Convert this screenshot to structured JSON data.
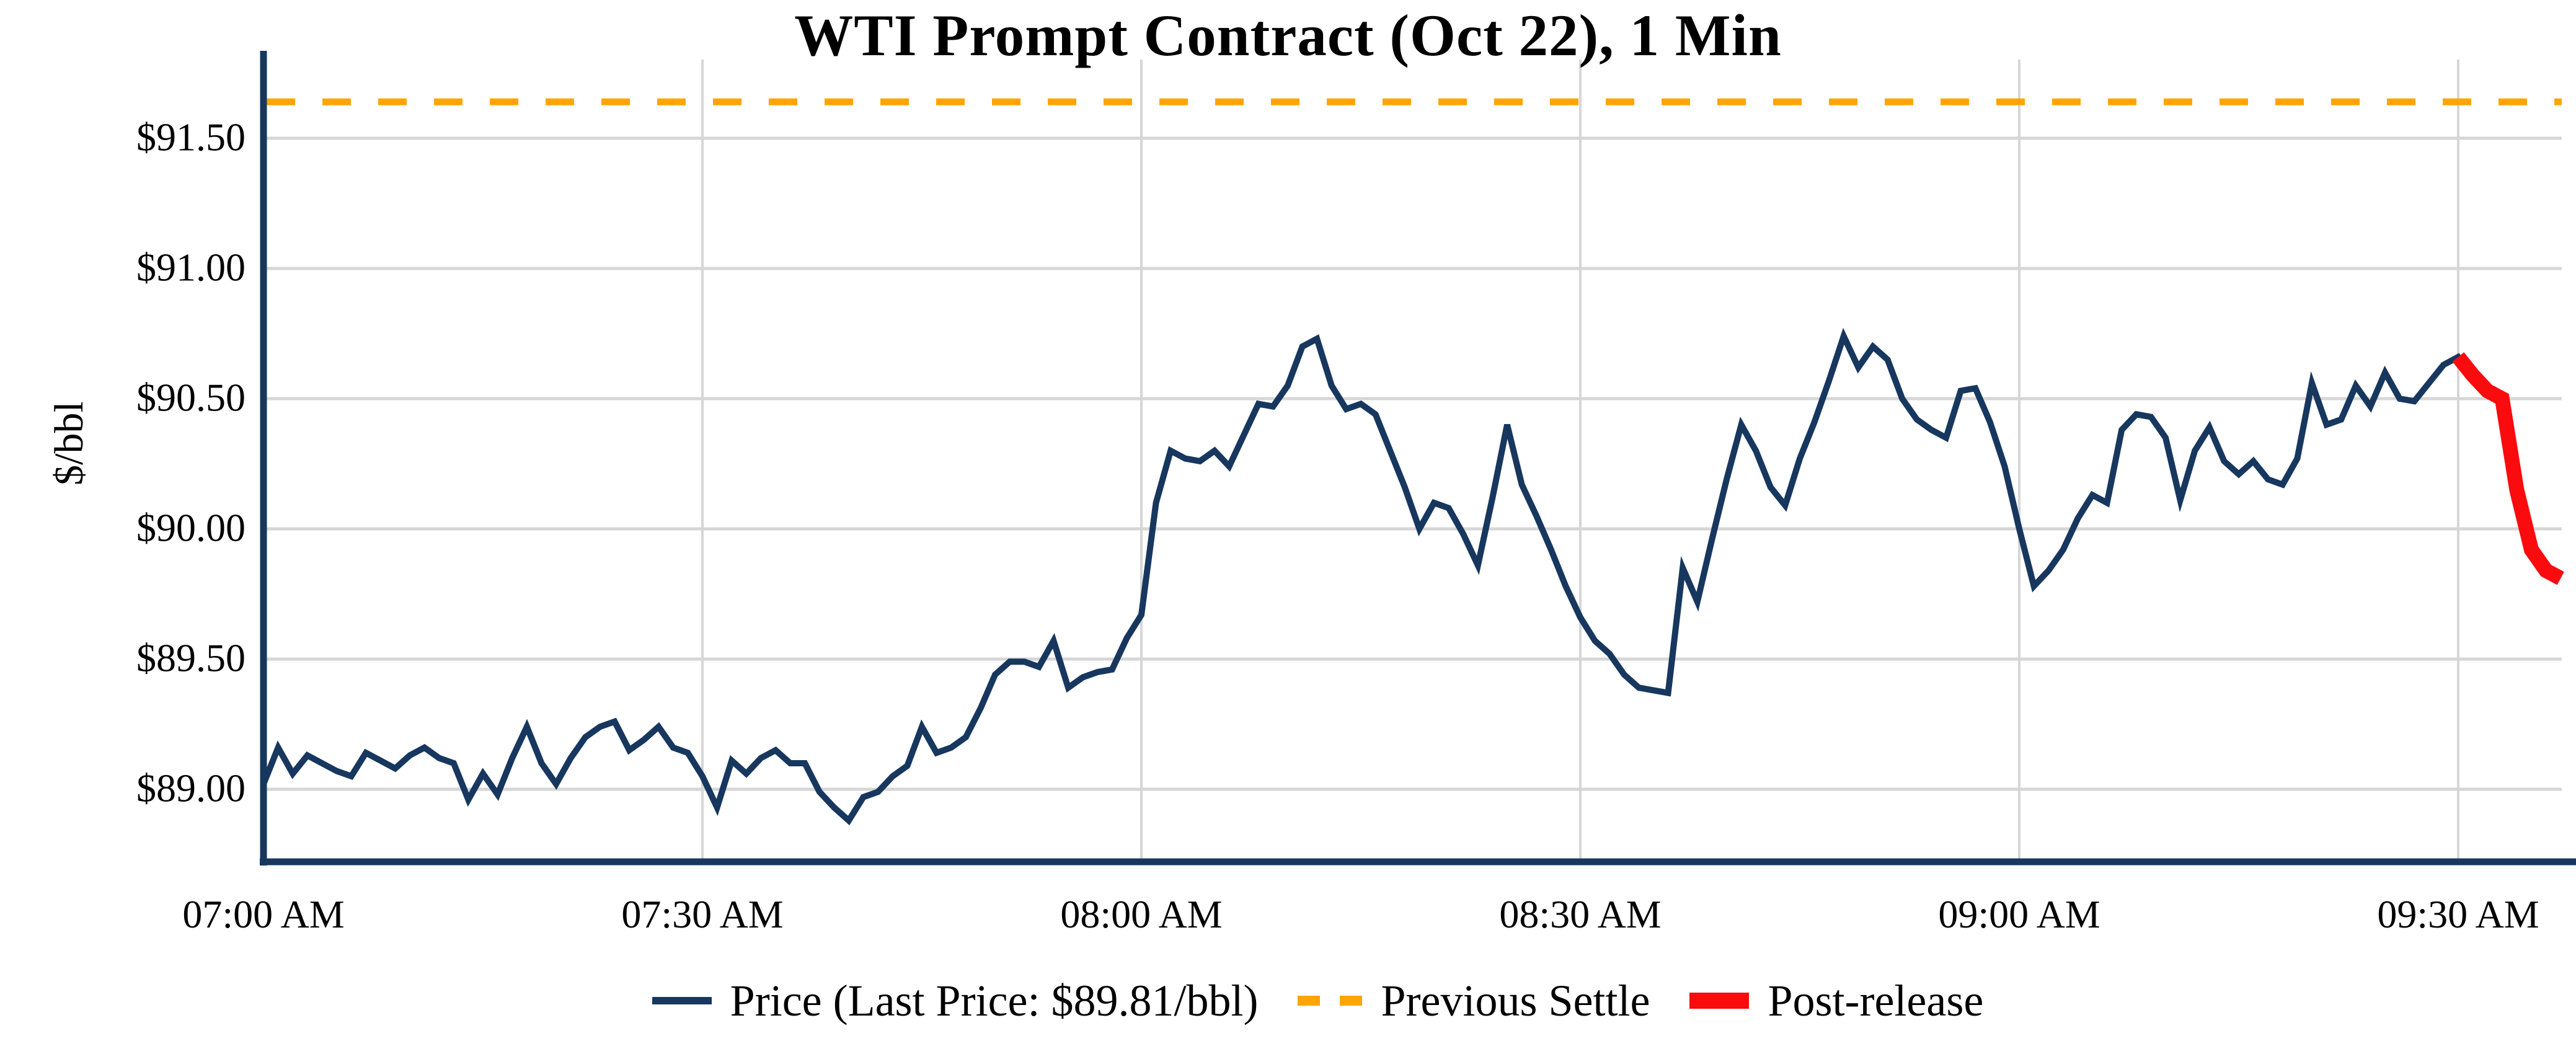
{
  "title": "WTI Prompt Contract (Oct 22), 1 Min",
  "y_axis_label": "$/bbl",
  "legend": {
    "price_label": "Price (Last Price: $89.81/bbl)",
    "settle_label": "Previous Settle",
    "post_label": "Post-release"
  },
  "colors": {
    "price": "#17375E",
    "settle": "#FFA405",
    "post": "#F90B0E",
    "grid": "#D6D6D6",
    "axis": "#17375E",
    "text": "#000000",
    "background": "#FFFFFF"
  },
  "chart_data": {
    "type": "line",
    "title": "WTI Prompt Contract (Oct 22), 1 Min",
    "xlabel": "",
    "ylabel": "$/bbl",
    "x_start": "07:00 AM",
    "x_interval_minutes": 1,
    "x_tick_labels": [
      "07:00 AM",
      "07:30 AM",
      "08:00 AM",
      "08:30 AM",
      "09:00 AM",
      "09:30 AM"
    ],
    "x_tick_minutes": [
      0,
      30,
      60,
      90,
      120,
      150
    ],
    "y_tick_labels": [
      "$91.50",
      "$91.00",
      "$90.50",
      "$90.00",
      "$89.50",
      "$89.00"
    ],
    "y_tick_values": [
      91.5,
      91.0,
      90.5,
      90.0,
      89.5,
      89.0
    ],
    "ylim": [
      88.72,
      91.8
    ],
    "grid": true,
    "legend_position": "bottom-center",
    "previous_settle": 91.64,
    "last_price": 89.81,
    "post_release_start_index": 150,
    "series": [
      {
        "name": "Price (Last Price: $89.81/bbl)",
        "values": [
          89.02,
          89.16,
          89.06,
          89.13,
          89.1,
          89.07,
          89.05,
          89.14,
          89.11,
          89.08,
          89.13,
          89.16,
          89.12,
          89.1,
          88.96,
          89.06,
          88.98,
          89.12,
          89.24,
          89.1,
          89.02,
          89.12,
          89.2,
          89.24,
          89.26,
          89.15,
          89.19,
          89.24,
          89.16,
          89.14,
          89.05,
          88.93,
          89.11,
          89.06,
          89.12,
          89.15,
          89.1,
          89.1,
          88.99,
          88.93,
          88.88,
          88.97,
          88.99,
          89.05,
          89.09,
          89.24,
          89.14,
          89.16,
          89.2,
          89.31,
          89.44,
          89.49,
          89.49,
          89.47,
          89.57,
          89.39,
          89.43,
          89.45,
          89.46,
          89.58,
          89.67,
          90.1,
          90.3,
          90.27,
          90.26,
          90.3,
          90.24,
          90.36,
          90.48,
          90.47,
          90.55,
          90.7,
          90.73,
          90.55,
          90.46,
          90.48,
          90.44,
          90.3,
          90.16,
          90.0,
          90.1,
          90.08,
          89.98,
          89.86,
          90.12,
          90.4,
          90.17,
          90.05,
          89.92,
          89.78,
          89.66,
          89.57,
          89.52,
          89.44,
          89.39,
          89.38,
          89.37,
          89.85,
          89.72,
          89.96,
          90.19,
          90.4,
          90.3,
          90.16,
          90.09,
          90.27,
          90.41,
          90.57,
          90.74,
          90.62,
          90.7,
          90.65,
          90.5,
          90.42,
          90.38,
          90.35,
          90.53,
          90.54,
          90.41,
          90.24,
          90.0,
          89.78,
          89.84,
          89.92,
          90.04,
          90.13,
          90.1,
          90.38,
          90.44,
          90.43,
          90.35,
          90.11,
          90.3,
          90.39,
          90.26,
          90.21,
          90.26,
          90.19,
          90.17,
          90.27,
          90.56,
          90.4,
          90.42,
          90.55,
          90.47,
          90.6,
          90.5,
          90.49,
          90.56,
          90.63,
          90.66,
          90.59,
          90.53,
          90.5,
          90.15,
          89.92,
          89.84,
          89.81
        ]
      },
      {
        "name": "Previous Settle",
        "values": [
          91.64
        ]
      },
      {
        "name": "Post-release",
        "values": [
          90.66,
          90.59,
          90.53,
          90.5,
          90.15,
          89.92,
          89.84,
          89.81
        ]
      }
    ]
  }
}
